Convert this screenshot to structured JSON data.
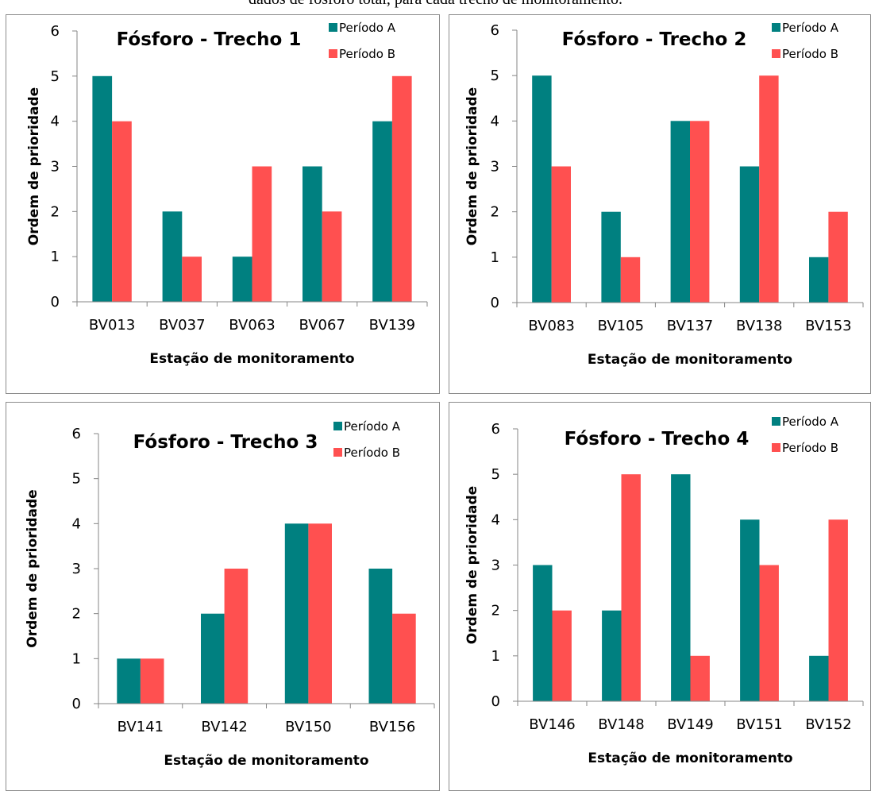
{
  "caption": "dados de fósforo total, para cada trecho de monitoramento.",
  "colors": {
    "series_a": "#008080",
    "series_b": "#FF5050"
  },
  "chart_data": [
    {
      "type": "bar",
      "title": "Fósforo - Trecho 1",
      "xlabel": "Estação de monitoramento",
      "ylabel": "Ordem de prioridade",
      "ylim": [
        0,
        6
      ],
      "yticks": [
        "0",
        "1",
        "2",
        "3",
        "4",
        "5",
        "6"
      ],
      "categories": [
        "BV013",
        "BV037",
        "BV063",
        "BV067",
        "BV139"
      ],
      "series": [
        {
          "name": "Período A",
          "values": [
            5,
            2,
            1,
            3,
            4
          ]
        },
        {
          "name": "Período B",
          "values": [
            4,
            1,
            3,
            2,
            5
          ]
        }
      ],
      "legend": "top-right",
      "grid": false
    },
    {
      "type": "bar",
      "title": "Fósforo - Trecho 2",
      "xlabel": "Estação de monitoramento",
      "ylabel": "Ordem de prioridade",
      "ylim": [
        0,
        6
      ],
      "yticks": [
        "0",
        "1",
        "2",
        "3",
        "4",
        "5",
        "6"
      ],
      "categories": [
        "BV083",
        "BV105",
        "BV137",
        "BV138",
        "BV153"
      ],
      "series": [
        {
          "name": "Período A",
          "values": [
            5,
            2,
            4,
            3,
            1
          ]
        },
        {
          "name": "Período B",
          "values": [
            3,
            1,
            4,
            5,
            2
          ]
        }
      ],
      "legend": "top-right",
      "grid": false
    },
    {
      "type": "bar",
      "title": "Fósforo - Trecho 3",
      "xlabel": "Estação de monitoramento",
      "ylabel": "Ordem de prioridade",
      "ylim": [
        0,
        6
      ],
      "yticks": [
        "0",
        "1",
        "2",
        "3",
        "4",
        "5",
        "6"
      ],
      "categories": [
        "BV141",
        "BV142",
        "BV150",
        "BV156"
      ],
      "series": [
        {
          "name": "Período A",
          "values": [
            1,
            2,
            4,
            3
          ]
        },
        {
          "name": "Período B",
          "values": [
            1,
            3,
            4,
            2
          ]
        }
      ],
      "legend": "top-right",
      "grid": false
    },
    {
      "type": "bar",
      "title": "Fósforo - Trecho 4",
      "xlabel": "Estação de monitoramento",
      "ylabel": "Ordem de prioridade",
      "ylim": [
        0,
        6
      ],
      "yticks": [
        "0",
        "1",
        "2",
        "3",
        "4",
        "5",
        "6"
      ],
      "categories": [
        "BV146",
        "BV148",
        "BV149",
        "BV151",
        "BV152"
      ],
      "series": [
        {
          "name": "Período A",
          "values": [
            3,
            2,
            5,
            4,
            1
          ]
        },
        {
          "name": "Período B",
          "values": [
            2,
            5,
            1,
            3,
            4
          ]
        }
      ],
      "legend": "top-right",
      "grid": false
    }
  ]
}
